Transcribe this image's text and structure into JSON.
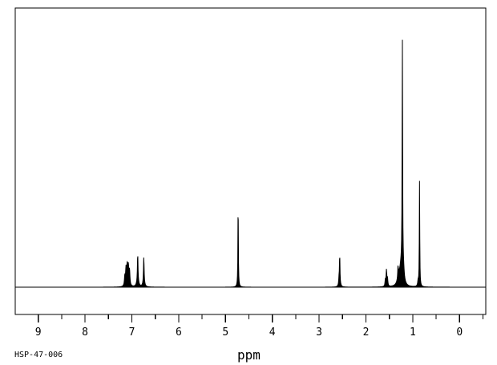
{
  "window": {
    "background_color": "#ffffff",
    "foreground_color": "#000000"
  },
  "footer": {
    "sample_id": "HSP-47-006",
    "xaxis_label": "ppm"
  },
  "chart_data": {
    "type": "line",
    "subtype": "1H-NMR-spectrum",
    "title": "",
    "xlabel": "ppm",
    "ylabel": "",
    "x_axis_reversed": true,
    "x_range_ppm": [
      9.49,
      -0.57
    ],
    "x_ticks_major": [
      9,
      8,
      7,
      6,
      5,
      4,
      3,
      2,
      1,
      0
    ],
    "x_ticks_minor": [
      8.5,
      7.5,
      6.5,
      5.5,
      4.5,
      3.5,
      2.5,
      1.5,
      0.5,
      -0.5
    ],
    "grid": false,
    "legend": false,
    "line_color": "#000000",
    "frame_color": "#000000",
    "peaks": [
      {
        "ppm": 7.1,
        "shape": "multiplet",
        "rel_intensity": 0.1
      },
      {
        "ppm": 6.87,
        "shape": "singlet",
        "rel_intensity": 0.12
      },
      {
        "ppm": 6.74,
        "shape": "singlet",
        "rel_intensity": 0.11
      },
      {
        "ppm": 4.73,
        "shape": "singlet",
        "rel_intensity": 0.36
      },
      {
        "ppm": 2.56,
        "shape": "singlet",
        "rel_intensity": 0.13
      },
      {
        "ppm": 1.56,
        "shape": "multiplet",
        "rel_intensity": 0.07
      },
      {
        "ppm": 1.22,
        "shape": "singlet",
        "rel_intensity": 1.0
      },
      {
        "ppm": 0.85,
        "shape": "singlet",
        "rel_intensity": 0.41
      }
    ],
    "peak_components": [
      {
        "ppm": 7.15,
        "h": 0.038,
        "w": 0.01
      },
      {
        "ppm": 7.125,
        "h": 0.063,
        "w": 0.01
      },
      {
        "ppm": 7.1,
        "h": 0.075,
        "w": 0.012
      },
      {
        "ppm": 7.075,
        "h": 0.072,
        "w": 0.012
      },
      {
        "ppm": 7.05,
        "h": 0.056,
        "w": 0.01
      },
      {
        "ppm": 6.875,
        "h": 0.107,
        "w": 0.007
      },
      {
        "ppm": 6.875,
        "h": 0.025,
        "w": 0.025
      },
      {
        "ppm": 6.745,
        "h": 0.097,
        "w": 0.007
      },
      {
        "ppm": 6.745,
        "h": 0.022,
        "w": 0.02
      },
      {
        "ppm": 4.73,
        "h": 0.339,
        "w": 0.005
      },
      {
        "ppm": 4.73,
        "h": 0.019,
        "w": 0.015
      },
      {
        "ppm": 2.575,
        "h": 0.025,
        "w": 0.008
      },
      {
        "ppm": 2.56,
        "h": 0.113,
        "w": 0.006
      },
      {
        "ppm": 2.56,
        "h": 0.016,
        "w": 0.02
      },
      {
        "ppm": 1.585,
        "h": 0.025,
        "w": 0.008
      },
      {
        "ppm": 1.562,
        "h": 0.063,
        "w": 0.009
      },
      {
        "ppm": 1.54,
        "h": 0.031,
        "w": 0.009
      },
      {
        "ppm": 1.315,
        "h": 0.044,
        "w": 0.006
      },
      {
        "ppm": 1.3,
        "h": 0.031,
        "w": 0.03
      },
      {
        "ppm": 1.25,
        "h": 0.069,
        "w": 0.035
      },
      {
        "ppm": 1.222,
        "h": 0.93,
        "w": 0.006
      },
      {
        "ppm": 1.2,
        "h": 0.047,
        "w": 0.02
      },
      {
        "ppm": 0.885,
        "h": 0.019,
        "w": 0.01
      },
      {
        "ppm": 0.855,
        "h": 0.395,
        "w": 0.005
      },
      {
        "ppm": 0.855,
        "h": 0.019,
        "w": 0.015
      }
    ]
  }
}
